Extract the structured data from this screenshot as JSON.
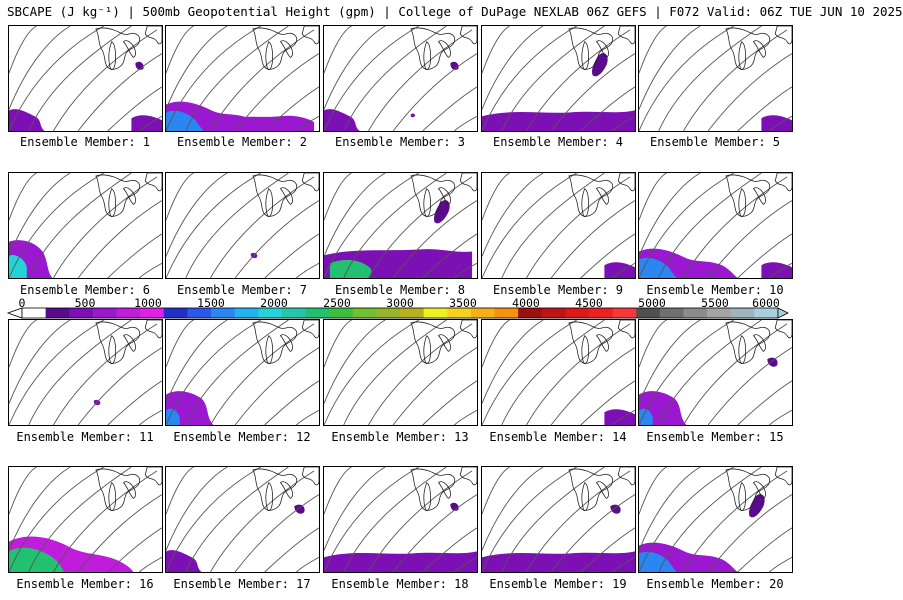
{
  "header": {
    "title": "SBCAPE (J kg⁻¹) | 500mb Geopotential Height (gpm) | College of DuPage NEXLAB 06Z GEFS | F072 Valid: 06Z TUE JUN 10 2025"
  },
  "panels": [
    {
      "label": "Ensemble Member: 1",
      "blobs": [
        "sw",
        "se_sm",
        "gl"
      ]
    },
    {
      "label": "Ensemble Member: 2",
      "blobs": [
        "sw_big",
        "s_mid"
      ]
    },
    {
      "label": "Ensemble Member: 3",
      "blobs": [
        "sw",
        "gl",
        "e_dot"
      ]
    },
    {
      "label": "Ensemble Member: 4",
      "blobs": [
        "s_wide",
        "gl_mi"
      ]
    },
    {
      "label": "Ensemble Member: 5",
      "blobs": [
        "se_sm"
      ]
    },
    {
      "label": "Ensemble Member: 6",
      "blobs": [
        "sw_hot"
      ]
    },
    {
      "label": "Ensemble Member: 7",
      "blobs": [
        "s_dot"
      ]
    },
    {
      "label": "Ensemble Member: 8",
      "blobs": [
        "s_band",
        "gl_mi"
      ]
    },
    {
      "label": "Ensemble Member: 9",
      "blobs": [
        "se_sm"
      ]
    },
    {
      "label": "Ensemble Member: 10",
      "blobs": [
        "sw_big",
        "se_sm"
      ]
    },
    {
      "label": "Ensemble Member: 11",
      "blobs": [
        "s_dot"
      ]
    },
    {
      "label": "Ensemble Member: 12",
      "blobs": [
        "sw_mid"
      ]
    },
    {
      "label": "Ensemble Member: 13",
      "blobs": []
    },
    {
      "label": "Ensemble Member: 14",
      "blobs": [
        "se_sm"
      ]
    },
    {
      "label": "Ensemble Member: 15",
      "blobs": [
        "sw_mid",
        "gl_e"
      ]
    },
    {
      "label": "Ensemble Member: 16",
      "blobs": [
        "sw_huge"
      ]
    },
    {
      "label": "Ensemble Member: 17",
      "blobs": [
        "sw",
        "gl_e"
      ]
    },
    {
      "label": "Ensemble Member: 18",
      "blobs": [
        "s_wide",
        "gl"
      ]
    },
    {
      "label": "Ensemble Member: 19",
      "blobs": [
        "s_wide",
        "gl_e"
      ]
    },
    {
      "label": "Ensemble Member: 20",
      "blobs": [
        "sw_big",
        "gl_mi"
      ]
    }
  ],
  "colorbar": {
    "ticks": [
      "0",
      "500",
      "1000",
      "1500",
      "2000",
      "2500",
      "3000",
      "3500",
      "4000",
      "4500",
      "5000",
      "5500",
      "6000"
    ],
    "colors": [
      "#ffffff",
      "#5a0a8c",
      "#7c10b4",
      "#9a18d0",
      "#c01cdc",
      "#e020e8",
      "#2030c8",
      "#2a58e8",
      "#2a86f0",
      "#20b4f0",
      "#22d4d8",
      "#24c8a8",
      "#22c070",
      "#3cc03c",
      "#70c030",
      "#98b428",
      "#b8b020",
      "#f0f020",
      "#f8d020",
      "#f8b018",
      "#f89010",
      "#9c1010",
      "#c01414",
      "#dc1818",
      "#f02020",
      "#f83838",
      "#505050",
      "#707070",
      "#8c8c8c",
      "#a4a4a4",
      "#9cb4bc",
      "#a8d0dc"
    ]
  }
}
